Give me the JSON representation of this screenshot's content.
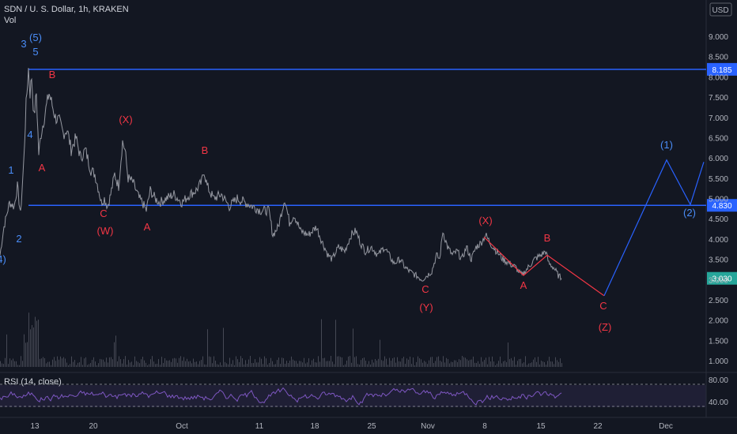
{
  "header": {
    "title": "SDN / U. S. Dollar, 1h, KRAKEN",
    "vol_label": "Vol",
    "currency": "USD"
  },
  "chart_data": {
    "type": "line",
    "price_axis": {
      "ticks": [
        "9.000",
        "8.500",
        "8.000",
        "7.500",
        "7.000",
        "6.500",
        "6.000",
        "5.500",
        "5.000",
        "4.500",
        "4.000",
        "3.500",
        "3.000",
        "2.500",
        "2.000",
        "1.500",
        "1.000"
      ],
      "tick_values": [
        9.0,
        8.5,
        8.0,
        7.5,
        7.0,
        6.5,
        6.0,
        5.5,
        5.0,
        4.5,
        4.0,
        3.5,
        3.0,
        2.5,
        2.0,
        1.5,
        1.0
      ],
      "ylim": [
        0.85,
        9.7
      ]
    },
    "time_axis": {
      "labels": [
        "13",
        "20",
        "Oct",
        "11",
        "18",
        "25",
        "Nov",
        "8",
        "15",
        "22",
        "Dec"
      ]
    },
    "horizontal_levels": [
      {
        "value": 8.185,
        "label": "8.185"
      },
      {
        "value": 4.83,
        "label": "4.830"
      }
    ],
    "last_price": {
      "value": 3.03,
      "label": "3.030"
    },
    "price_path": [
      [
        0,
        3.6
      ],
      [
        5,
        4.3
      ],
      [
        12,
        4.9
      ],
      [
        18,
        4.8
      ],
      [
        22,
        5.3
      ],
      [
        26,
        4.6
      ],
      [
        30,
        5.9
      ],
      [
        33,
        7.3
      ],
      [
        36,
        8.2
      ],
      [
        38,
        7.6
      ],
      [
        40,
        8.0
      ],
      [
        43,
        7.0
      ],
      [
        46,
        7.6
      ],
      [
        49,
        6.1
      ],
      [
        52,
        6.6
      ],
      [
        55,
        6.9
      ],
      [
        58,
        7.2
      ],
      [
        62,
        7.6
      ],
      [
        66,
        7.3
      ],
      [
        70,
        7.0
      ],
      [
        75,
        6.9
      ],
      [
        80,
        6.6
      ],
      [
        85,
        6.7
      ],
      [
        90,
        6.2
      ],
      [
        96,
        6.5
      ],
      [
        102,
        6.0
      ],
      [
        108,
        6.2
      ],
      [
        115,
        5.7
      ],
      [
        120,
        5.6
      ],
      [
        125,
        5.2
      ],
      [
        128,
        4.9
      ],
      [
        132,
        5.0
      ],
      [
        136,
        4.8
      ],
      [
        140,
        5.1
      ],
      [
        145,
        5.6
      ],
      [
        150,
        5.3
      ],
      [
        155,
        6.4
      ],
      [
        158,
        6.2
      ],
      [
        162,
        5.5
      ],
      [
        168,
        5.4
      ],
      [
        172,
        5.2
      ],
      [
        176,
        5.0
      ],
      [
        180,
        4.9
      ],
      [
        185,
        4.7
      ],
      [
        190,
        5.2
      ],
      [
        196,
        5.0
      ],
      [
        202,
        4.9
      ],
      [
        210,
        5.0
      ],
      [
        220,
        5.1
      ],
      [
        230,
        4.9
      ],
      [
        240,
        5.1
      ],
      [
        248,
        5.2
      ],
      [
        255,
        5.4
      ],
      [
        258,
        5.7
      ],
      [
        262,
        5.3
      ],
      [
        270,
        5.0
      ],
      [
        280,
        5.1
      ],
      [
        290,
        4.8
      ],
      [
        300,
        5.0
      ],
      [
        310,
        4.9
      ],
      [
        320,
        4.8
      ],
      [
        330,
        4.7
      ],
      [
        340,
        4.7
      ],
      [
        345,
        4.1
      ],
      [
        352,
        4.3
      ],
      [
        360,
        5.0
      ],
      [
        366,
        4.4
      ],
      [
        372,
        4.6
      ],
      [
        380,
        4.2
      ],
      [
        390,
        4.1
      ],
      [
        400,
        4.3
      ],
      [
        408,
        3.9
      ],
      [
        415,
        3.6
      ],
      [
        420,
        3.5
      ],
      [
        428,
        3.8
      ],
      [
        436,
        3.7
      ],
      [
        444,
        4.1
      ],
      [
        450,
        4.2
      ],
      [
        456,
        3.9
      ],
      [
        462,
        3.7
      ],
      [
        470,
        3.8
      ],
      [
        478,
        3.6
      ],
      [
        486,
        3.8
      ],
      [
        492,
        3.6
      ],
      [
        498,
        3.4
      ],
      [
        506,
        3.5
      ],
      [
        512,
        3.3
      ],
      [
        518,
        3.2
      ],
      [
        526,
        3.1
      ],
      [
        534,
        3.0
      ],
      [
        540,
        3.1
      ],
      [
        546,
        3.2
      ],
      [
        552,
        3.6
      ],
      [
        556,
        3.5
      ],
      [
        560,
        4.2
      ],
      [
        566,
        3.8
      ],
      [
        572,
        3.6
      ],
      [
        578,
        3.7
      ],
      [
        584,
        3.5
      ],
      [
        590,
        3.8
      ],
      [
        596,
        3.5
      ],
      [
        602,
        3.8
      ],
      [
        608,
        3.9
      ],
      [
        614,
        4.1
      ],
      [
        620,
        3.9
      ],
      [
        628,
        3.7
      ],
      [
        636,
        3.5
      ],
      [
        644,
        3.4
      ],
      [
        652,
        3.3
      ],
      [
        660,
        3.1
      ],
      [
        668,
        3.3
      ],
      [
        676,
        3.5
      ],
      [
        684,
        3.6
      ],
      [
        690,
        3.7
      ],
      [
        694,
        3.4
      ],
      [
        700,
        3.3
      ],
      [
        706,
        3.1
      ],
      [
        710,
        3.03
      ]
    ],
    "projection_red": [
      [
        612,
        4.05
      ],
      [
        662,
        3.1
      ],
      [
        692,
        3.6
      ],
      [
        764,
        2.6
      ]
    ],
    "projection_blue": [
      [
        764,
        2.6
      ],
      [
        843,
        5.95
      ],
      [
        873,
        4.85
      ],
      [
        890,
        5.9
      ]
    ],
    "wave_labels": [
      {
        "text": "3",
        "x": 30,
        "y": 60,
        "color": "blue"
      },
      {
        "text": "(5)",
        "x": 45,
        "y": 52,
        "color": "blue"
      },
      {
        "text": "5",
        "x": 45,
        "y": 70,
        "color": "blue"
      },
      {
        "text": "4",
        "x": 38,
        "y": 175,
        "color": "blue"
      },
      {
        "text": "1",
        "x": 14,
        "y": 220,
        "color": "blue"
      },
      {
        "text": "2",
        "x": 24,
        "y": 307,
        "color": "blue"
      },
      {
        "text": "4)",
        "x": 2,
        "y": 333,
        "color": "blue"
      },
      {
        "text": "B",
        "x": 66,
        "y": 99,
        "color": "red"
      },
      {
        "text": "A",
        "x": 53,
        "y": 217,
        "color": "red"
      },
      {
        "text": "(X)",
        "x": 159,
        "y": 156,
        "color": "red"
      },
      {
        "text": "C",
        "x": 131,
        "y": 275,
        "color": "red"
      },
      {
        "text": "(W)",
        "x": 133,
        "y": 297,
        "color": "red"
      },
      {
        "text": "A",
        "x": 186,
        "y": 292,
        "color": "red"
      },
      {
        "text": "B",
        "x": 259,
        "y": 195,
        "color": "red"
      },
      {
        "text": "C",
        "x": 538,
        "y": 371,
        "color": "red"
      },
      {
        "text": "(Y)",
        "x": 539,
        "y": 394,
        "color": "red"
      },
      {
        "text": "(X)",
        "x": 614,
        "y": 284,
        "color": "red"
      },
      {
        "text": "B",
        "x": 692,
        "y": 306,
        "color": "red"
      },
      {
        "text": "A",
        "x": 662,
        "y": 366,
        "color": "red"
      },
      {
        "text": "C",
        "x": 763,
        "y": 392,
        "color": "red"
      },
      {
        "text": "(Z)",
        "x": 765,
        "y": 419,
        "color": "red"
      },
      {
        "text": "(1)",
        "x": 843,
        "y": 188,
        "color": "blue-light"
      },
      {
        "text": "(2)",
        "x": 872,
        "y": 274,
        "color": "blue-light"
      }
    ],
    "rsi": {
      "label": "RSI (14, close)",
      "ticks": [
        "80.00",
        "40.00"
      ],
      "tick_values": [
        80,
        40
      ],
      "band": [
        30,
        70
      ],
      "ylim": [
        20,
        95
      ]
    },
    "colors": {
      "background": "#131722",
      "price_line": "#9598a1",
      "level_line": "#2962ff",
      "projection_red": "#f23645",
      "projection_blue": "#2962ff",
      "last_price_bg": "#26a69a",
      "rsi_line": "#7e57c2",
      "rsi_band": "#7e57c2",
      "volume_bar": "#5d606b"
    }
  }
}
